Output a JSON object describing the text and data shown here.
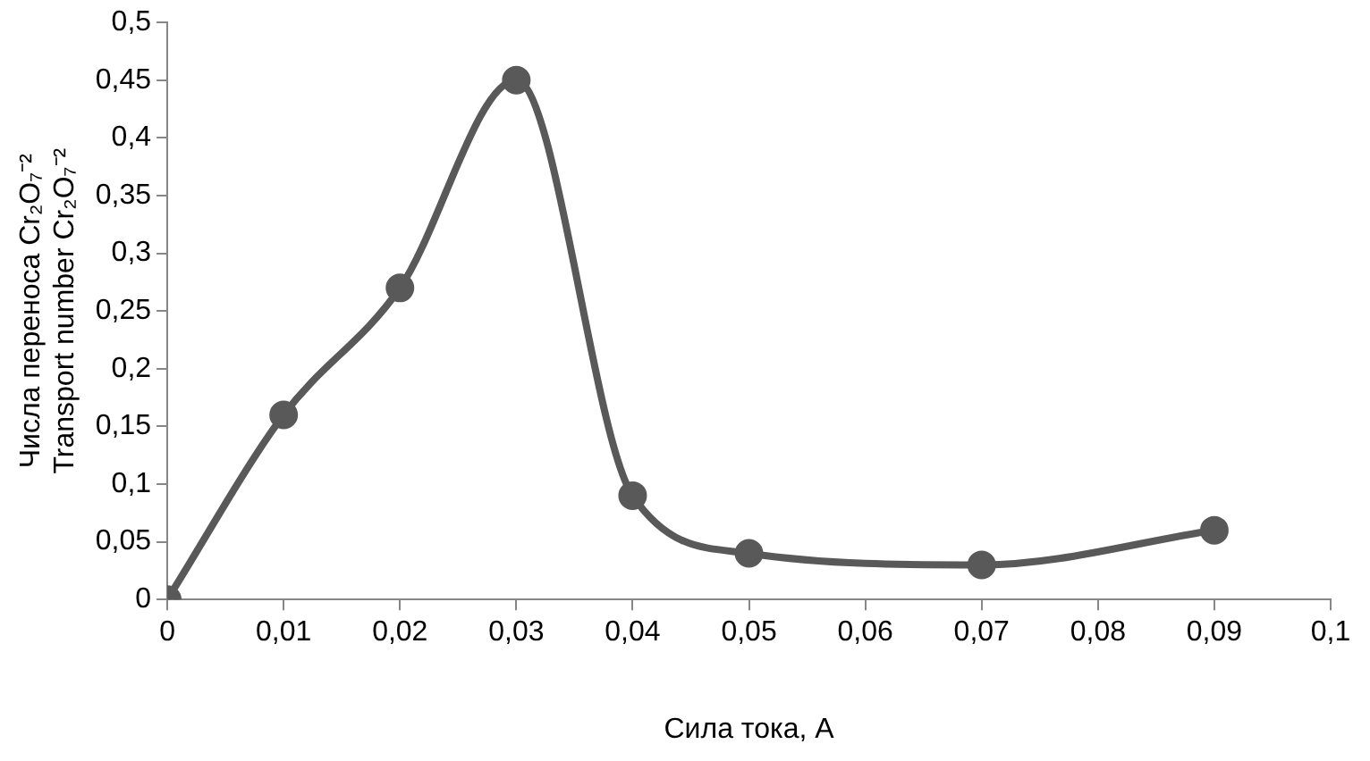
{
  "chart_data": {
    "type": "line",
    "xlabel": "Сила тока, А",
    "ylabel": [
      "Числа переноса Cr₂O₇⁻²",
      "Transport number Cr₂O₇⁻²"
    ],
    "x": [
      0,
      0.01,
      0.02,
      0.03,
      0.04,
      0.05,
      0.07,
      0.09
    ],
    "series": [
      {
        "color": "#595959",
        "values": [
          0,
          0.16,
          0.27,
          0.45,
          0.09,
          0.04,
          0.03,
          0.06
        ]
      }
    ],
    "xlim": [
      0,
      0.1
    ],
    "xticks": [
      0,
      {
        "value": 0.01,
        "label": "0,01"
      },
      {
        "value": 0.02,
        "label": "0,02"
      },
      {
        "value": 0.03,
        "label": "0,03"
      },
      {
        "value": 0.04,
        "label": "0,04"
      },
      {
        "value": 0.05,
        "label": "0,05"
      },
      {
        "value": 0.06,
        "label": "0,06"
      },
      {
        "value": 0.07,
        "label": "0,07"
      },
      {
        "value": 0.08,
        "label": "0,08"
      },
      {
        "value": 0.09,
        "label": "0,09"
      },
      {
        "value": 0.1,
        "label": "0,1"
      }
    ],
    "ylim": [
      0,
      0.5
    ],
    "yticks": [
      0,
      {
        "value": 0.05,
        "label": "0,05"
      },
      {
        "value": 0.1,
        "label": "0,1"
      },
      {
        "value": 0.15,
        "label": "0,15"
      },
      {
        "value": 0.2,
        "label": "0,2"
      },
      {
        "value": 0.25,
        "label": "0,25"
      },
      {
        "value": 0.3,
        "label": "0,3"
      },
      {
        "value": 0.35,
        "label": "0,35"
      },
      {
        "value": 0.4,
        "label": "0,4"
      },
      {
        "value": 0.45,
        "label": "0,45"
      },
      {
        "value": 0.5,
        "label": "0,5"
      }
    ],
    "grid": false,
    "legend": false,
    "marker": "circle",
    "line_style": "solid"
  }
}
